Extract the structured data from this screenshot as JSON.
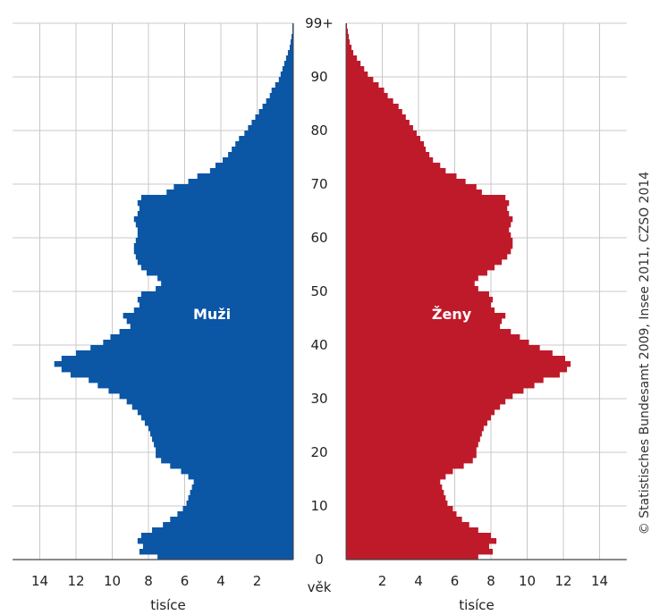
{
  "chart_data": {
    "type": "bar",
    "orientation": "horizontal",
    "subtype": "population-pyramid",
    "xlabel_left": "tisíce",
    "xlabel_right": "tisíce",
    "age_axis_label": "věk",
    "age_ticks": [
      "0",
      "10",
      "20",
      "30",
      "40",
      "50",
      "60",
      "70",
      "80",
      "90",
      "99+"
    ],
    "x_ticks_left": [
      "14",
      "12",
      "10",
      "8",
      "6",
      "4",
      "2"
    ],
    "x_ticks_right": [
      "2",
      "4",
      "6",
      "8",
      "10",
      "12",
      "14"
    ],
    "xlim": [
      0,
      15.5
    ],
    "grid": true,
    "credit": "© Statistisches Bundesamt 2009, Insee 2011, CZSO 2014",
    "series": [
      {
        "name": "Muži",
        "side": "left",
        "color": "#0b56a5",
        "values": [
          7.5,
          8.5,
          8.3,
          8.6,
          8.4,
          7.8,
          7.2,
          6.8,
          6.4,
          6.1,
          5.9,
          5.8,
          5.7,
          5.6,
          5.5,
          5.8,
          6.2,
          6.8,
          7.3,
          7.6,
          7.6,
          7.7,
          7.8,
          7.9,
          8.0,
          8.2,
          8.4,
          8.6,
          8.9,
          9.2,
          9.6,
          10.2,
          10.8,
          11.3,
          12.3,
          12.8,
          13.2,
          12.8,
          12.0,
          11.2,
          10.5,
          10.1,
          9.6,
          9.0,
          9.2,
          9.4,
          8.8,
          8.5,
          8.6,
          8.4,
          7.6,
          7.3,
          7.5,
          8.1,
          8.4,
          8.6,
          8.7,
          8.8,
          8.8,
          8.7,
          8.6,
          8.6,
          8.7,
          8.8,
          8.6,
          8.5,
          8.6,
          8.4,
          7.0,
          6.6,
          5.8,
          5.3,
          4.6,
          4.3,
          3.9,
          3.6,
          3.4,
          3.2,
          3.0,
          2.7,
          2.5,
          2.3,
          2.1,
          1.9,
          1.7,
          1.5,
          1.3,
          1.2,
          1.0,
          0.8,
          0.7,
          0.6,
          0.5,
          0.4,
          0.3,
          0.2,
          0.15,
          0.1,
          0.05,
          0.05
        ]
      },
      {
        "name": "Ženy",
        "side": "right",
        "color": "#bf1a2a",
        "values": [
          7.3,
          8.1,
          7.9,
          8.3,
          8.0,
          7.3,
          6.8,
          6.4,
          6.1,
          5.9,
          5.6,
          5.5,
          5.4,
          5.3,
          5.2,
          5.5,
          5.9,
          6.5,
          7.0,
          7.2,
          7.2,
          7.3,
          7.4,
          7.5,
          7.6,
          7.8,
          8.0,
          8.2,
          8.5,
          8.8,
          9.2,
          9.8,
          10.4,
          10.9,
          11.8,
          12.2,
          12.4,
          12.1,
          11.4,
          10.7,
          10.1,
          9.6,
          9.1,
          8.5,
          8.6,
          8.8,
          8.2,
          8.0,
          8.1,
          7.9,
          7.3,
          7.1,
          7.3,
          7.8,
          8.2,
          8.6,
          8.9,
          9.1,
          9.2,
          9.2,
          9.1,
          9.0,
          9.1,
          9.2,
          9.0,
          8.9,
          9.0,
          8.8,
          7.5,
          7.2,
          6.6,
          6.1,
          5.5,
          5.2,
          4.8,
          4.6,
          4.4,
          4.3,
          4.1,
          3.9,
          3.7,
          3.5,
          3.3,
          3.1,
          2.9,
          2.6,
          2.3,
          2.1,
          1.8,
          1.5,
          1.2,
          1.0,
          0.8,
          0.6,
          0.4,
          0.3,
          0.2,
          0.15,
          0.1,
          0.05
        ]
      }
    ]
  }
}
